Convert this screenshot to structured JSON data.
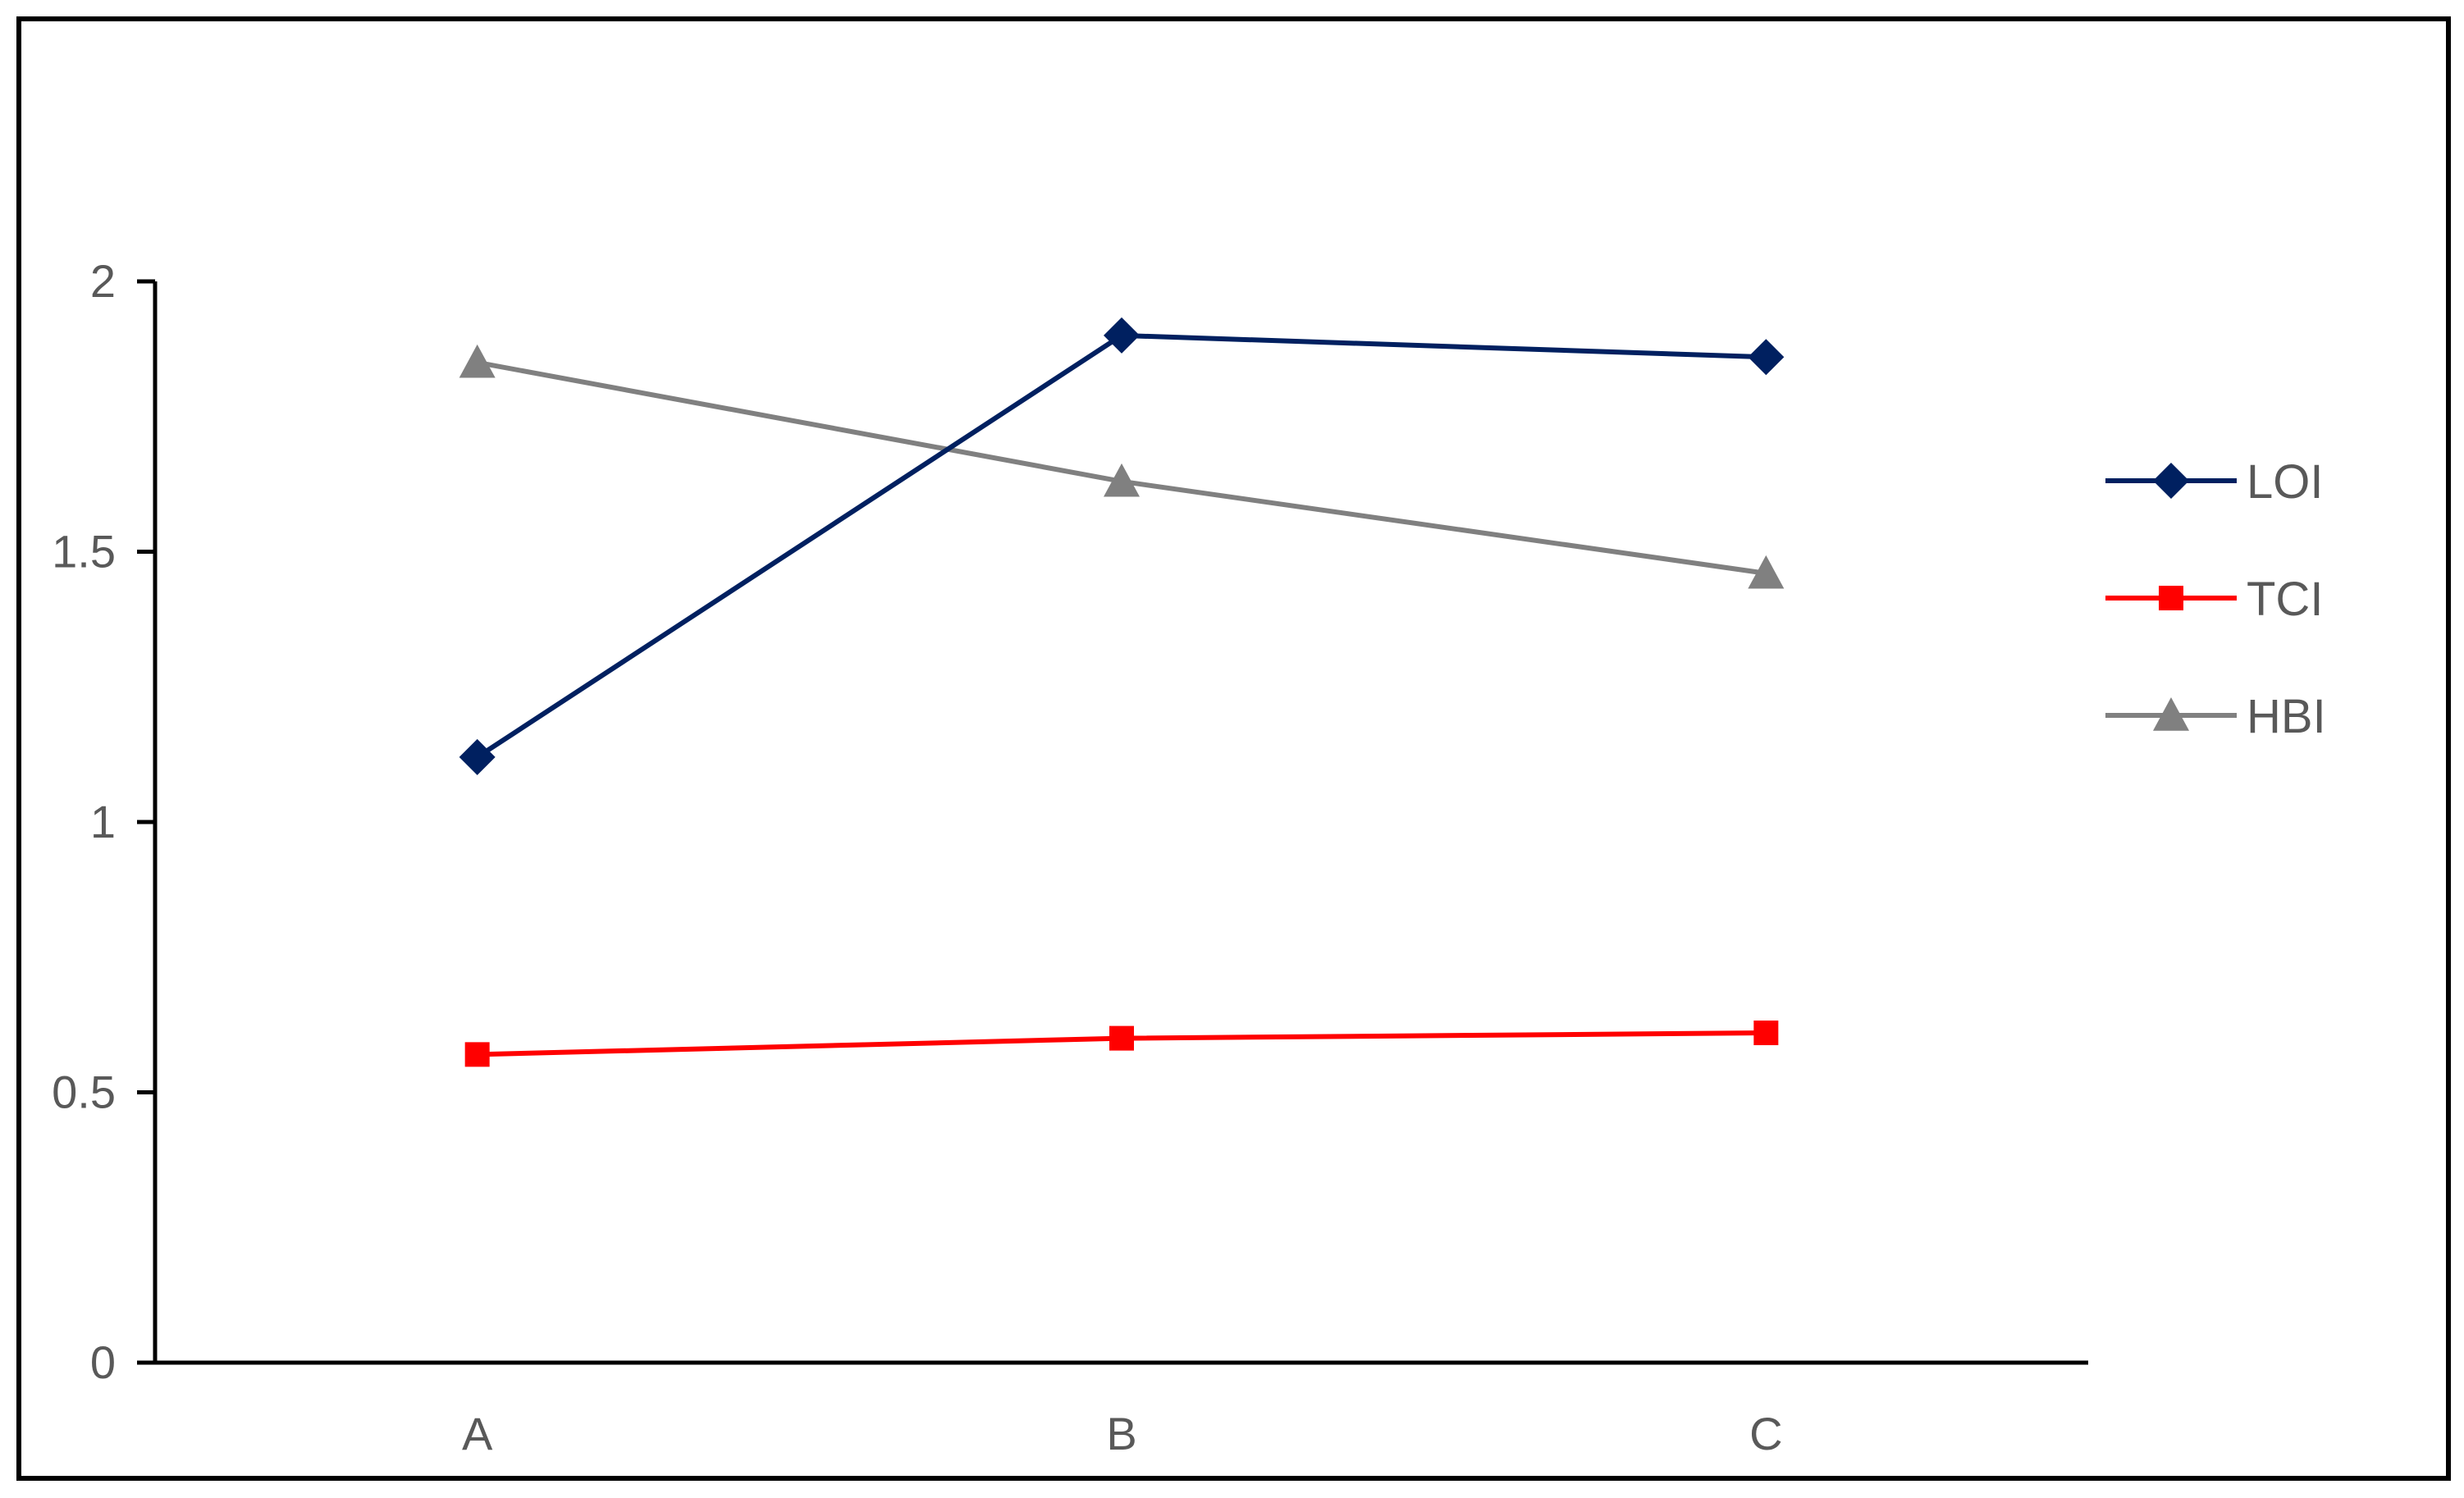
{
  "chart_data": {
    "type": "line",
    "title": "",
    "xlabel": "",
    "ylabel": "",
    "categories": [
      "A",
      "B",
      "C"
    ],
    "ylim": [
      0,
      2
    ],
    "yticks": [
      0,
      0.5,
      1,
      1.5,
      2
    ],
    "ytick_labels": [
      "0",
      "0.5",
      "1",
      "1.5",
      "2"
    ],
    "grid": false,
    "legend_position": "right",
    "series": [
      {
        "name": "LOI",
        "values": [
          1.12,
          1.9,
          1.86
        ],
        "color": "#002060",
        "marker": "diamond"
      },
      {
        "name": "TCI",
        "values": [
          0.57,
          0.6,
          0.61
        ],
        "color": "#FF0000",
        "marker": "square"
      },
      {
        "name": "HBI",
        "values": [
          1.85,
          1.63,
          1.46
        ],
        "color": "#808080",
        "marker": "triangle"
      }
    ]
  }
}
